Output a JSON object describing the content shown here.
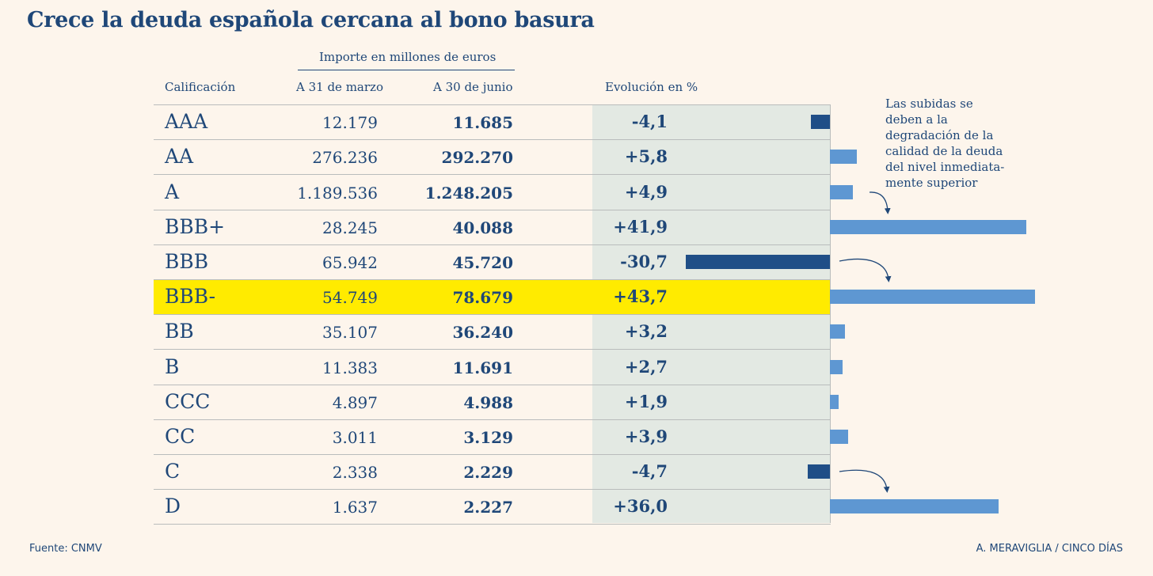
{
  "title": "Crece la deuda española cercana al bono basura",
  "headers": {
    "group": "Importe en millones de euros",
    "rating": "Calificación",
    "march": "A 31 de marzo",
    "june": "A 30 de  junio",
    "evolution": "Evolución en %"
  },
  "note_lines": [
    "Las subidas se",
    "deben a la",
    "degradación de la",
    "calidad de la deuda",
    "del nivel inmediata-",
    "mente superior"
  ],
  "source": "Fuente: CNMV",
  "credit": "A. MERAVIGLIA / CINCO DÍAS",
  "colors": {
    "positive_bar": "#5e97d2",
    "negative_bar": "#1f4e87",
    "highlight": "#ffeb00",
    "text": "#1f4778"
  },
  "chart_data": {
    "type": "table",
    "title": "Crece la deuda española cercana al bono basura",
    "highlighted_row": "BBB-",
    "columns": [
      "Calificación",
      "A 31 de marzo",
      "A 30 de  junio",
      "Evolución en %"
    ],
    "rows": [
      {
        "rating": "AAA",
        "march": "12.179",
        "june": "11.685",
        "evolution": "-4,1",
        "value": -4.1
      },
      {
        "rating": "AA",
        "march": "276.236",
        "june": "292.270",
        "evolution": "+5,8",
        "value": 5.8
      },
      {
        "rating": "A",
        "march": "1.189.536",
        "june": "1.248.205",
        "evolution": "+4,9",
        "value": 4.9
      },
      {
        "rating": "BBB+",
        "march": "28.245",
        "june": "40.088",
        "evolution": "+41,9",
        "value": 41.9
      },
      {
        "rating": "BBB",
        "march": "65.942",
        "june": "45.720",
        "evolution": "-30,7",
        "value": -30.7
      },
      {
        "rating": "BBB-",
        "march": "54.749",
        "june": "78.679",
        "evolution": "+43,7",
        "value": 43.7
      },
      {
        "rating": "BB",
        "march": "35.107",
        "june": "36.240",
        "evolution": "+3,2",
        "value": 3.2
      },
      {
        "rating": "B",
        "march": "11.383",
        "june": "11.691",
        "evolution": "+2,7",
        "value": 2.7
      },
      {
        "rating": "CCC",
        "march": "4.897",
        "june": "4.988",
        "evolution": "+1,9",
        "value": 1.9
      },
      {
        "rating": "CC",
        "march": "3.011",
        "june": "3.129",
        "evolution": "+3,9",
        "value": 3.9
      },
      {
        "rating": "C",
        "march": "2.338",
        "june": "2.229",
        "evolution": "-4,7",
        "value": -4.7
      },
      {
        "rating": "D",
        "march": "1.637",
        "june": "2.227",
        "evolution": "+36,0",
        "value": 36.0
      }
    ]
  }
}
